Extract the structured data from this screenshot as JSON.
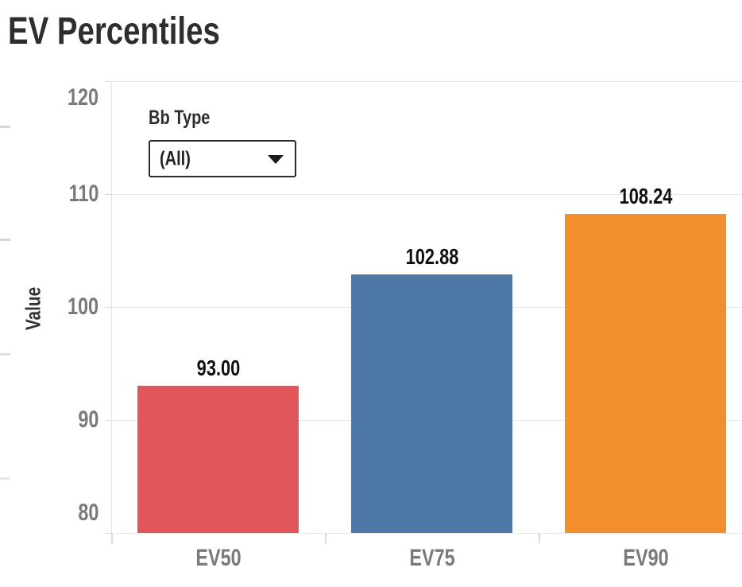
{
  "title": "EV Percentiles",
  "filter": {
    "label": "Bb Type",
    "value": "(All)"
  },
  "icons": {
    "dropdown_caret": "chevron-down"
  },
  "chart_data": {
    "type": "bar",
    "title": "EV Percentiles",
    "categories": [
      "EV50",
      "EV75",
      "EV90"
    ],
    "values": [
      93.0,
      102.88,
      108.24
    ],
    "value_labels": [
      "93.00",
      "102.88",
      "108.24"
    ],
    "bar_colors": [
      "#e15759",
      "#4e79a7",
      "#f28e2b"
    ],
    "xlabel": "",
    "ylabel": "Value",
    "ylim": [
      80,
      120
    ],
    "yticks": [
      80,
      90,
      100,
      110,
      120
    ],
    "grid": true,
    "legend_position": "none"
  },
  "colors": {
    "bar_red": "#e15759",
    "bar_blue": "#4e79a7",
    "bar_orange": "#f28e2b",
    "axis_text": "#7a7a7a",
    "title_text": "#2e2e2e",
    "value_label_text": "#111111"
  }
}
